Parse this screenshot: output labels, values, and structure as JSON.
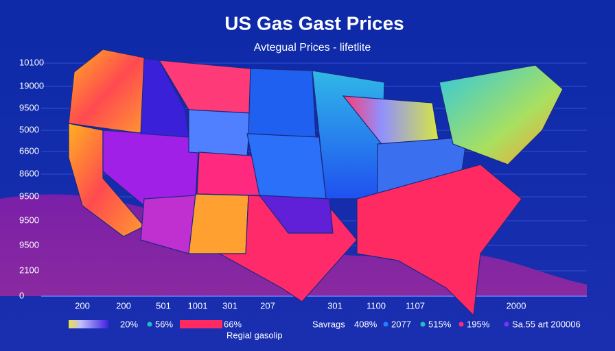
{
  "header": {
    "title": "US Gas Gast Prices",
    "subtitle": "Avtegual Prices - lifetlite"
  },
  "left_labels": [
    "10100",
    "19000",
    "9500",
    "5000",
    "6600",
    "8600",
    "9500",
    "9500",
    "9500",
    "2100",
    "0"
  ],
  "bottom_labels": [
    "200",
    "200",
    "501",
    "1001",
    "301",
    "207",
    "301",
    "1100",
    "1107",
    "2000"
  ],
  "legend": {
    "items": [
      "20%",
      "56%",
      "66%",
      "Savrags",
      "408%",
      "2077",
      "515%",
      "195%",
      "Sa.55 art 200006"
    ],
    "caption": "Regial gasolip"
  }
}
